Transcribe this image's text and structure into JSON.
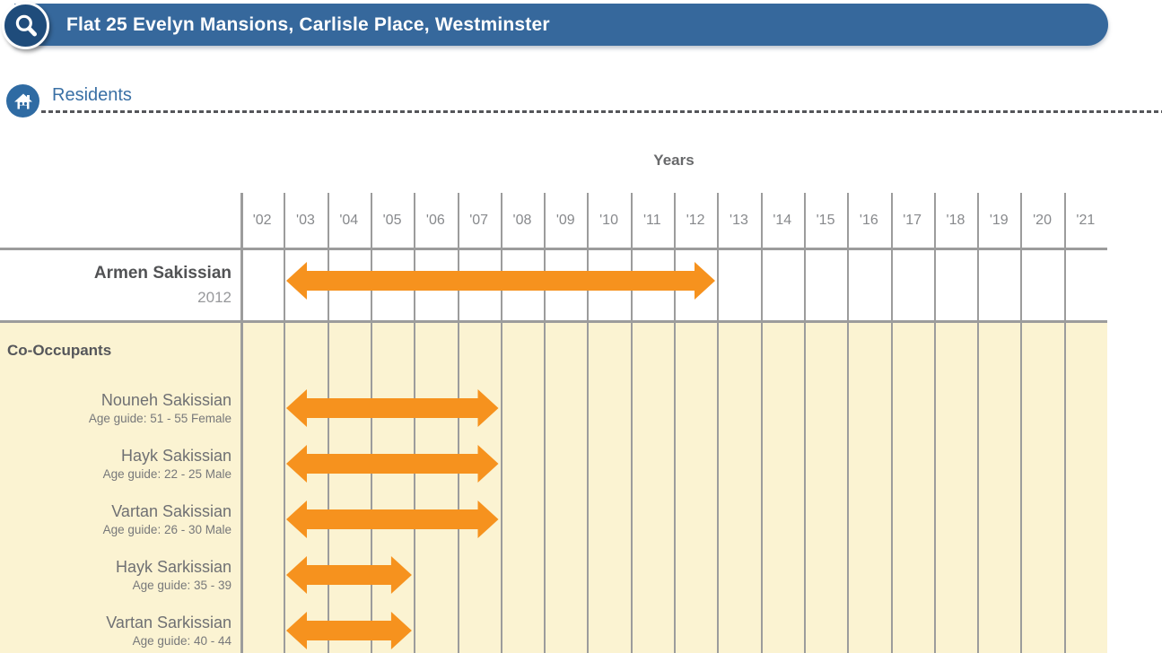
{
  "header": {
    "title": "Flat 25 Evelyn Mansions, Carlisle Place, Westminster"
  },
  "section": {
    "title": "Residents"
  },
  "chart_data": {
    "type": "timeline",
    "axis_title": "Years",
    "years": [
      "'02",
      "'03",
      "'04",
      "'05",
      "'06",
      "'07",
      "'08",
      "'09",
      "'10",
      "'11",
      "'12",
      "'13",
      "'14",
      "'15",
      "'16",
      "'17",
      "'18",
      "'19",
      "'20",
      "'21"
    ],
    "resident": {
      "name": "Armen Sakissian",
      "detail": "2012",
      "bar": {
        "from": "'03",
        "to": "'12"
      }
    },
    "co_occupants_label": "Co-Occupants",
    "co_occupants": [
      {
        "name": "Nouneh Sakissian",
        "detail": "Age guide: 51 - 55 Female",
        "bar": {
          "from": "'03",
          "to": "'07"
        }
      },
      {
        "name": "Hayk Sakissian",
        "detail": "Age guide: 22 - 25 Male",
        "bar": {
          "from": "'03",
          "to": "'07"
        }
      },
      {
        "name": "Vartan Sakissian",
        "detail": "Age guide: 26 - 30 Male",
        "bar": {
          "from": "'03",
          "to": "'07"
        }
      },
      {
        "name": "Hayk Sarkissian",
        "detail": "Age guide: 35 - 39",
        "bar": {
          "from": "'03",
          "to": "'05"
        }
      },
      {
        "name": "Vartan Sarkissian",
        "detail": "Age guide: 40 - 44",
        "bar": {
          "from": "'03",
          "to": "'05"
        }
      }
    ],
    "layout_hints": {
      "bar_style": "double-headed-arrow",
      "grid": "vertical-year-columns"
    },
    "colors": {
      "header_bar": "#36689C",
      "search_badge": "#1F4C7B",
      "residents_badge": "#2F6BA3",
      "section_title": "#3A70A5",
      "arrow": "#F6921E",
      "co_occupant_bg": "#FBF3D2",
      "gridline": "#9C9C9C"
    }
  }
}
